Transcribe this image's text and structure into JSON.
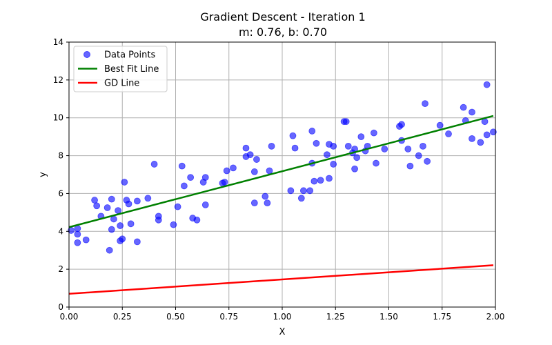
{
  "chart_data": {
    "type": "scatter",
    "title": "Gradient Descent - Iteration 1",
    "subtitle": "m: 0.76, b: 0.70",
    "xlabel": "X",
    "ylabel": "y",
    "xlim": [
      0.0,
      2.0
    ],
    "ylim": [
      0,
      14
    ],
    "xticks": [
      "0.00",
      "0.25",
      "0.50",
      "0.75",
      "1.00",
      "1.25",
      "1.50",
      "1.75",
      "2.00"
    ],
    "xtick_values": [
      0.0,
      0.25,
      0.5,
      0.75,
      1.0,
      1.25,
      1.5,
      1.75,
      2.0
    ],
    "yticks": [
      "0",
      "2",
      "4",
      "6",
      "8",
      "10",
      "12",
      "14"
    ],
    "ytick_values": [
      0,
      2,
      4,
      6,
      8,
      10,
      12,
      14
    ],
    "grid": true,
    "legend_position": "top-left",
    "legend": [
      {
        "label": "Data Points",
        "kind": "marker",
        "color": "#0000ff"
      },
      {
        "label": "Best Fit Line",
        "kind": "line",
        "color": "#008000"
      },
      {
        "label": "GD Line",
        "kind": "line",
        "color": "#ff0000"
      }
    ],
    "scatter": {
      "name": "Data Points",
      "color": "#0000ff",
      "points": [
        [
          0.01,
          4.05
        ],
        [
          0.04,
          3.85
        ],
        [
          0.04,
          4.15
        ],
        [
          0.04,
          3.4
        ],
        [
          0.08,
          3.55
        ],
        [
          0.12,
          5.65
        ],
        [
          0.13,
          5.35
        ],
        [
          0.15,
          4.8
        ],
        [
          0.18,
          5.25
        ],
        [
          0.19,
          3.0
        ],
        [
          0.2,
          4.1
        ],
        [
          0.2,
          5.7
        ],
        [
          0.21,
          4.65
        ],
        [
          0.23,
          5.1
        ],
        [
          0.24,
          4.3
        ],
        [
          0.24,
          3.5
        ],
        [
          0.25,
          3.6
        ],
        [
          0.26,
          6.6
        ],
        [
          0.27,
          5.65
        ],
        [
          0.28,
          5.45
        ],
        [
          0.29,
          4.4
        ],
        [
          0.32,
          5.6
        ],
        [
          0.32,
          3.45
        ],
        [
          0.37,
          5.75
        ],
        [
          0.4,
          7.55
        ],
        [
          0.42,
          4.8
        ],
        [
          0.42,
          4.6
        ],
        [
          0.49,
          4.35
        ],
        [
          0.51,
          5.3
        ],
        [
          0.53,
          7.45
        ],
        [
          0.54,
          6.4
        ],
        [
          0.57,
          6.85
        ],
        [
          0.58,
          4.7
        ],
        [
          0.6,
          4.6
        ],
        [
          0.63,
          6.6
        ],
        [
          0.64,
          6.85
        ],
        [
          0.64,
          5.4
        ],
        [
          0.72,
          6.55
        ],
        [
          0.73,
          6.6
        ],
        [
          0.74,
          7.2
        ],
        [
          0.77,
          7.35
        ],
        [
          0.83,
          7.95
        ],
        [
          0.83,
          8.4
        ],
        [
          0.85,
          8.05
        ],
        [
          0.87,
          7.15
        ],
        [
          0.87,
          5.5
        ],
        [
          0.88,
          7.8
        ],
        [
          0.92,
          5.85
        ],
        [
          0.93,
          5.5
        ],
        [
          0.94,
          7.2
        ],
        [
          0.95,
          8.5
        ],
        [
          1.04,
          6.15
        ],
        [
          1.05,
          9.05
        ],
        [
          1.06,
          8.4
        ],
        [
          1.09,
          5.75
        ],
        [
          1.1,
          6.15
        ],
        [
          1.13,
          6.15
        ],
        [
          1.14,
          9.3
        ],
        [
          1.14,
          7.6
        ],
        [
          1.15,
          6.65
        ],
        [
          1.16,
          8.65
        ],
        [
          1.18,
          6.7
        ],
        [
          1.21,
          8.05
        ],
        [
          1.22,
          6.8
        ],
        [
          1.22,
          8.6
        ],
        [
          1.24,
          8.5
        ],
        [
          1.24,
          7.55
        ],
        [
          1.29,
          9.8
        ],
        [
          1.3,
          9.8
        ],
        [
          1.31,
          8.5
        ],
        [
          1.33,
          8.15
        ],
        [
          1.34,
          7.3
        ],
        [
          1.34,
          8.35
        ],
        [
          1.35,
          7.9
        ],
        [
          1.37,
          9.0
        ],
        [
          1.39,
          8.25
        ],
        [
          1.4,
          8.5
        ],
        [
          1.43,
          9.2
        ],
        [
          1.44,
          7.6
        ],
        [
          1.48,
          8.35
        ],
        [
          1.55,
          9.55
        ],
        [
          1.56,
          9.65
        ],
        [
          1.56,
          8.8
        ],
        [
          1.59,
          8.35
        ],
        [
          1.6,
          7.45
        ],
        [
          1.64,
          8.0
        ],
        [
          1.66,
          8.5
        ],
        [
          1.67,
          10.75
        ],
        [
          1.68,
          7.7
        ],
        [
          1.74,
          9.6
        ],
        [
          1.78,
          9.15
        ],
        [
          1.85,
          10.55
        ],
        [
          1.86,
          9.85
        ],
        [
          1.89,
          10.3
        ],
        [
          1.89,
          8.9
        ],
        [
          1.93,
          8.7
        ],
        [
          1.95,
          9.8
        ],
        [
          1.96,
          9.1
        ],
        [
          1.96,
          11.75
        ],
        [
          1.99,
          9.25
        ]
      ]
    },
    "lines": [
      {
        "name": "Best Fit Line",
        "color": "#008000",
        "x": [
          0.0,
          1.99
        ],
        "y": [
          4.22,
          10.1
        ]
      },
      {
        "name": "GD Line",
        "color": "#ff0000",
        "x": [
          0.0,
          1.99
        ],
        "y": [
          0.7,
          2.21
        ]
      }
    ]
  }
}
